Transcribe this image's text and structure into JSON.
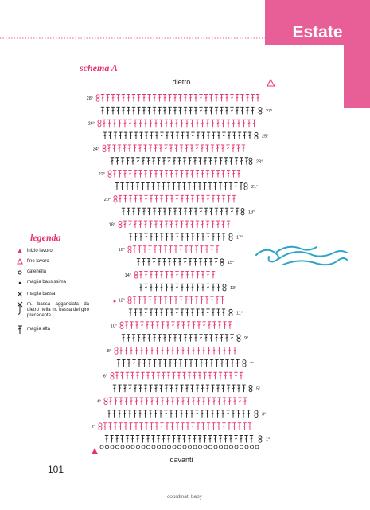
{
  "header": {
    "tab": "Estate"
  },
  "schema": {
    "title": "schema A",
    "top_label": "dietro",
    "bottom_label": "davanti",
    "rows": [
      "28°",
      "27°",
      "26°",
      "25°",
      "24°",
      "23°",
      "22°",
      "21°",
      "20°",
      "19°",
      "18°",
      "17°",
      "16°",
      "15°",
      "14°",
      "13°",
      "12°",
      "11°",
      "10°",
      "9°",
      "8°",
      "7°",
      "6°",
      "5°",
      "4°",
      "3°",
      "2°",
      "1°"
    ]
  },
  "legend": {
    "title": "legenda",
    "items": [
      "inizio lavoro",
      "fine lavoro",
      "catenella",
      "maglia bassissima",
      "maglia bassa",
      "m. bassa agganciata da dietro nella m. bassa del giro precedente",
      "maglia alta"
    ]
  },
  "footer": {
    "page_number": "101",
    "book_title": "coordinati baby"
  }
}
